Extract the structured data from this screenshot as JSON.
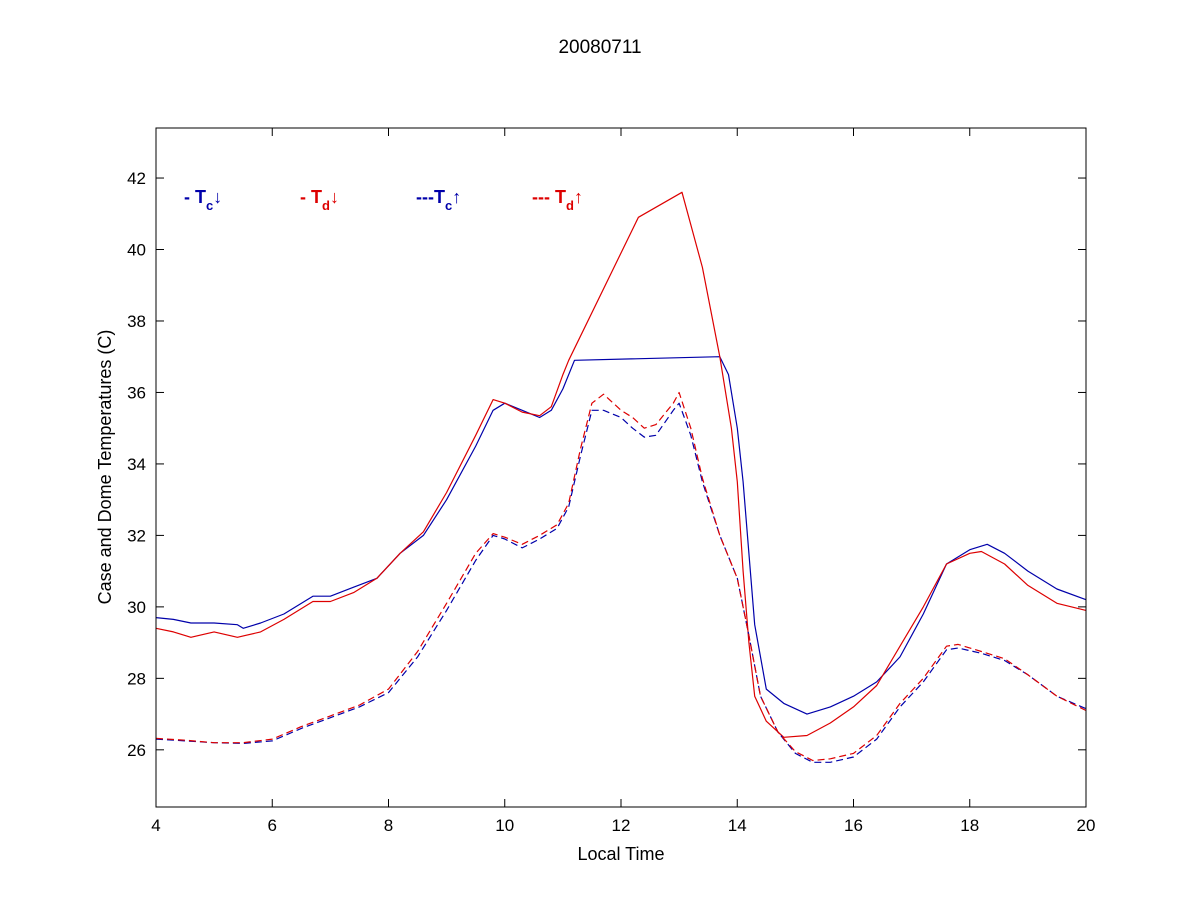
{
  "chart_data": {
    "type": "line",
    "title": "20080711",
    "xlabel": "Local Time",
    "ylabel": "Case and Dome Temperatures (C)",
    "xlim": [
      4,
      20
    ],
    "ylim": [
      24.4,
      43.4
    ],
    "xticks": [
      4,
      6,
      8,
      10,
      12,
      14,
      16,
      18,
      20
    ],
    "yticks": [
      26,
      28,
      30,
      32,
      34,
      36,
      38,
      40,
      42
    ],
    "grid": false,
    "legend_position": "top-left",
    "series": [
      {
        "name": "- Tc↓",
        "legend": {
          "prefix": "- ",
          "symbol": "T",
          "sub": "c",
          "arrow": "↓"
        },
        "color": "#0000aa",
        "style": "solid",
        "points": [
          [
            4.0,
            29.7
          ],
          [
            4.3,
            29.65
          ],
          [
            4.6,
            29.55
          ],
          [
            5.0,
            29.55
          ],
          [
            5.4,
            29.5
          ],
          [
            5.5,
            29.4
          ],
          [
            5.8,
            29.55
          ],
          [
            6.2,
            29.8
          ],
          [
            6.7,
            30.3
          ],
          [
            7.0,
            30.3
          ],
          [
            7.4,
            30.55
          ],
          [
            7.8,
            30.8
          ],
          [
            8.2,
            31.5
          ],
          [
            8.6,
            32.0
          ],
          [
            9.0,
            33.0
          ],
          [
            9.5,
            34.5
          ],
          [
            9.8,
            35.5
          ],
          [
            10.0,
            35.7
          ],
          [
            10.3,
            35.5
          ],
          [
            10.6,
            35.3
          ],
          [
            10.8,
            35.5
          ],
          [
            11.0,
            36.1
          ],
          [
            11.2,
            36.9
          ],
          [
            13.7,
            37.0
          ],
          [
            13.85,
            36.5
          ],
          [
            14.0,
            35.0
          ],
          [
            14.1,
            33.5
          ],
          [
            14.2,
            31.5
          ],
          [
            14.3,
            29.5
          ],
          [
            14.5,
            27.7
          ],
          [
            14.8,
            27.3
          ],
          [
            15.2,
            27.0
          ],
          [
            15.6,
            27.2
          ],
          [
            16.0,
            27.5
          ],
          [
            16.4,
            27.9
          ],
          [
            16.8,
            28.6
          ],
          [
            17.2,
            29.8
          ],
          [
            17.6,
            31.2
          ],
          [
            18.0,
            31.6
          ],
          [
            18.3,
            31.75
          ],
          [
            18.6,
            31.5
          ],
          [
            19.0,
            31.0
          ],
          [
            19.5,
            30.5
          ],
          [
            20.0,
            30.2
          ]
        ]
      },
      {
        "name": "- Td↓",
        "legend": {
          "prefix": "- ",
          "symbol": "T",
          "sub": "d",
          "arrow": "↓"
        },
        "color": "#dd0000",
        "style": "solid",
        "points": [
          [
            4.0,
            29.4
          ],
          [
            4.3,
            29.3
          ],
          [
            4.6,
            29.15
          ],
          [
            5.0,
            29.3
          ],
          [
            5.4,
            29.15
          ],
          [
            5.8,
            29.3
          ],
          [
            6.2,
            29.65
          ],
          [
            6.7,
            30.15
          ],
          [
            7.0,
            30.15
          ],
          [
            7.4,
            30.4
          ],
          [
            7.8,
            30.8
          ],
          [
            8.2,
            31.5
          ],
          [
            8.6,
            32.1
          ],
          [
            9.0,
            33.2
          ],
          [
            9.5,
            34.8
          ],
          [
            9.8,
            35.8
          ],
          [
            10.0,
            35.7
          ],
          [
            10.3,
            35.45
          ],
          [
            10.6,
            35.35
          ],
          [
            10.8,
            35.6
          ],
          [
            11.0,
            36.5
          ],
          [
            11.1,
            36.9
          ],
          [
            12.3,
            40.9
          ],
          [
            13.05,
            41.6
          ],
          [
            13.4,
            39.5
          ],
          [
            13.7,
            37.0
          ],
          [
            13.9,
            35.0
          ],
          [
            14.0,
            33.5
          ],
          [
            14.1,
            31.0
          ],
          [
            14.2,
            29.0
          ],
          [
            14.3,
            27.5
          ],
          [
            14.5,
            26.8
          ],
          [
            14.8,
            26.35
          ],
          [
            15.2,
            26.4
          ],
          [
            15.6,
            26.75
          ],
          [
            16.0,
            27.2
          ],
          [
            16.4,
            27.8
          ],
          [
            16.8,
            28.9
          ],
          [
            17.2,
            30.0
          ],
          [
            17.6,
            31.2
          ],
          [
            18.0,
            31.5
          ],
          [
            18.2,
            31.55
          ],
          [
            18.6,
            31.2
          ],
          [
            19.0,
            30.6
          ],
          [
            19.5,
            30.1
          ],
          [
            20.0,
            29.9
          ]
        ]
      },
      {
        "name": "---Tc↑",
        "legend": {
          "prefix": "---",
          "symbol": "T",
          "sub": "c",
          "arrow": "↑"
        },
        "color": "#0000aa",
        "style": "dashed",
        "points": [
          [
            4.0,
            26.3
          ],
          [
            4.5,
            26.25
          ],
          [
            5.0,
            26.2
          ],
          [
            5.5,
            26.18
          ],
          [
            6.0,
            26.25
          ],
          [
            6.5,
            26.6
          ],
          [
            7.0,
            26.9
          ],
          [
            7.5,
            27.2
          ],
          [
            8.0,
            27.6
          ],
          [
            8.5,
            28.6
          ],
          [
            9.0,
            29.9
          ],
          [
            9.5,
            31.3
          ],
          [
            9.8,
            32.0
          ],
          [
            10.0,
            31.9
          ],
          [
            10.3,
            31.65
          ],
          [
            10.6,
            31.9
          ],
          [
            10.9,
            32.2
          ],
          [
            11.1,
            32.8
          ],
          [
            11.3,
            34.2
          ],
          [
            11.5,
            35.5
          ],
          [
            11.7,
            35.5
          ],
          [
            12.0,
            35.3
          ],
          [
            12.2,
            35.0
          ],
          [
            12.4,
            34.75
          ],
          [
            12.6,
            34.8
          ],
          [
            12.9,
            35.5
          ],
          [
            13.0,
            35.7
          ],
          [
            13.2,
            34.8
          ],
          [
            13.4,
            33.5
          ],
          [
            13.7,
            32.0
          ],
          [
            14.0,
            30.8
          ],
          [
            14.2,
            29.2
          ],
          [
            14.4,
            27.5
          ],
          [
            14.7,
            26.5
          ],
          [
            15.0,
            25.9
          ],
          [
            15.3,
            25.65
          ],
          [
            15.6,
            25.65
          ],
          [
            16.0,
            25.8
          ],
          [
            16.4,
            26.3
          ],
          [
            16.8,
            27.2
          ],
          [
            17.2,
            27.9
          ],
          [
            17.6,
            28.8
          ],
          [
            17.8,
            28.85
          ],
          [
            18.2,
            28.7
          ],
          [
            18.6,
            28.5
          ],
          [
            19.0,
            28.1
          ],
          [
            19.5,
            27.5
          ],
          [
            20.0,
            27.15
          ]
        ]
      },
      {
        "name": "--- Td↑",
        "legend": {
          "prefix": "--- ",
          "symbol": "T",
          "sub": "d",
          "arrow": "↑"
        },
        "color": "#dd0000",
        "style": "dashed",
        "points": [
          [
            4.0,
            26.32
          ],
          [
            4.5,
            26.27
          ],
          [
            5.0,
            26.2
          ],
          [
            5.5,
            26.2
          ],
          [
            6.0,
            26.3
          ],
          [
            6.5,
            26.65
          ],
          [
            7.0,
            26.95
          ],
          [
            7.5,
            27.25
          ],
          [
            8.0,
            27.7
          ],
          [
            8.5,
            28.75
          ],
          [
            9.0,
            30.1
          ],
          [
            9.5,
            31.5
          ],
          [
            9.8,
            32.05
          ],
          [
            10.0,
            31.95
          ],
          [
            10.3,
            31.75
          ],
          [
            10.6,
            32.0
          ],
          [
            10.9,
            32.3
          ],
          [
            11.1,
            32.9
          ],
          [
            11.3,
            34.4
          ],
          [
            11.5,
            35.7
          ],
          [
            11.7,
            35.95
          ],
          [
            12.0,
            35.5
          ],
          [
            12.2,
            35.3
          ],
          [
            12.4,
            35.0
          ],
          [
            12.6,
            35.1
          ],
          [
            12.9,
            35.7
          ],
          [
            13.0,
            36.0
          ],
          [
            13.2,
            35.0
          ],
          [
            13.4,
            33.6
          ],
          [
            13.7,
            32.0
          ],
          [
            14.0,
            30.8
          ],
          [
            14.2,
            29.2
          ],
          [
            14.4,
            27.5
          ],
          [
            14.7,
            26.5
          ],
          [
            15.0,
            25.95
          ],
          [
            15.3,
            25.7
          ],
          [
            15.6,
            25.75
          ],
          [
            16.0,
            25.9
          ],
          [
            16.4,
            26.4
          ],
          [
            16.8,
            27.3
          ],
          [
            17.2,
            28.0
          ],
          [
            17.6,
            28.9
          ],
          [
            17.8,
            28.95
          ],
          [
            18.2,
            28.75
          ],
          [
            18.6,
            28.55
          ],
          [
            19.0,
            28.1
          ],
          [
            19.5,
            27.5
          ],
          [
            20.0,
            27.1
          ]
        ]
      }
    ]
  }
}
